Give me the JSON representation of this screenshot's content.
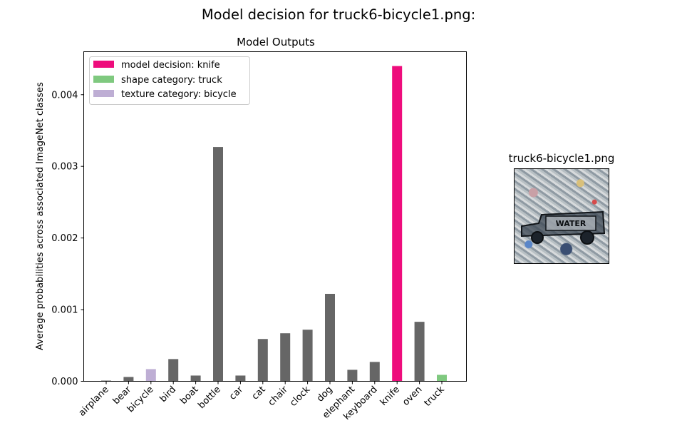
{
  "figure": {
    "suptitle": "Model decision for truck6-bicycle1.png:"
  },
  "chart_data": {
    "type": "bar",
    "title": "Model Outputs",
    "xlabel": "",
    "ylabel": "Average probabilities across associated ImageNet classes",
    "categories": [
      "airplane",
      "bear",
      "bicycle",
      "bird",
      "boat",
      "bottle",
      "car",
      "cat",
      "chair",
      "clock",
      "dog",
      "elephant",
      "keyboard",
      "knife",
      "oven",
      "truck"
    ],
    "values": [
      1e-05,
      6e-05,
      0.00017,
      0.00031,
      8e-05,
      0.00327,
      8e-05,
      0.00059,
      0.00067,
      0.00072,
      0.00122,
      0.00016,
      0.00027,
      0.0044,
      0.00083,
      9e-05
    ],
    "ylim": [
      0,
      0.0046
    ],
    "yticks": [
      0.0,
      0.001,
      0.002,
      0.003,
      0.004
    ],
    "ytick_labels": [
      "0.000",
      "0.001",
      "0.002",
      "0.003",
      "0.004"
    ],
    "grid": false,
    "legend_position": "top-left",
    "legend": [
      {
        "label": "model decision: knife",
        "color": "#ee0c7c"
      },
      {
        "label": "shape category: truck",
        "color": "#7fc97f"
      },
      {
        "label": "texture category: bicycle",
        "color": "#beaed4"
      }
    ],
    "bar_colors": {
      "default": "#666666",
      "knife": "#ee0c7c",
      "truck": "#7fc97f",
      "bicycle": "#beaed4"
    }
  },
  "thumbnail": {
    "title": "truck6-bicycle1.png",
    "caption_in_image": "WATER"
  }
}
